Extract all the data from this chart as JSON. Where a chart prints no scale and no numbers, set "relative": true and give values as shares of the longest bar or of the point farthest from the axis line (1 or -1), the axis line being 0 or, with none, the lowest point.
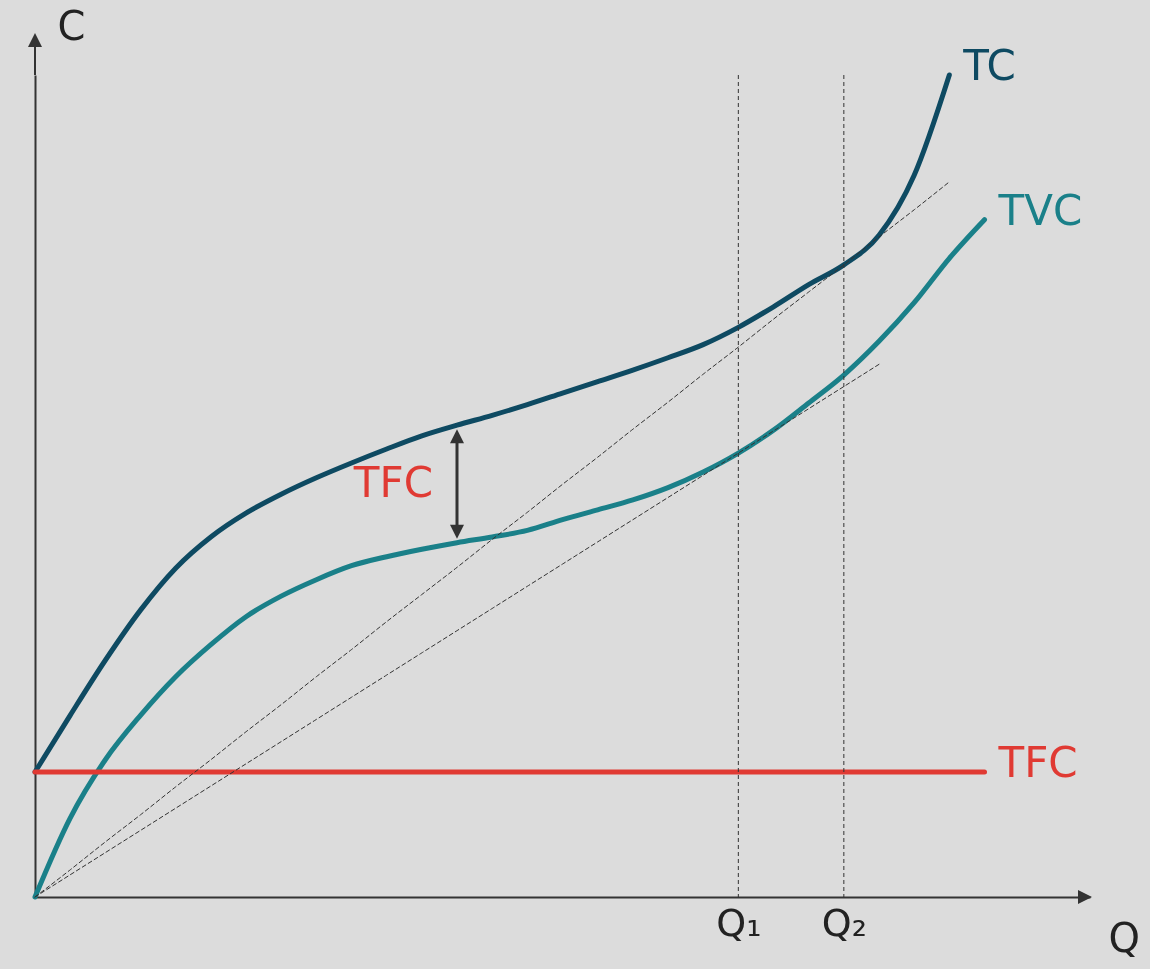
{
  "chart_data": {
    "type": "line",
    "relative": true,
    "xlabel": "Q",
    "ylabel": "C",
    "categories": [
      null,
      null,
      null,
      null,
      null,
      null,
      null,
      null,
      null,
      null,
      null,
      null,
      null,
      null,
      null,
      null,
      null,
      null,
      null,
      null,
      "Q₁",
      null,
      null,
      "Q₂",
      null,
      null,
      null,
      null,
      null,
      null,
      null
    ],
    "series": [
      {
        "name": "TC",
        "color": "#0e4a62",
        "values": [
          0.152,
          0.221,
          0.288,
          0.349,
          0.4,
          0.438,
          0.467,
          0.49,
          0.51,
          0.528,
          0.545,
          0.561,
          0.574,
          0.586,
          0.599,
          0.613,
          0.627,
          0.641,
          0.656,
          0.672,
          0.693,
          0.718,
          0.745,
          0.769,
          0.805,
          0.878,
          1,
          null,
          null,
          null,
          null
        ]
      },
      {
        "name": "TVC",
        "color": "#1a8089",
        "values": [
          0,
          0.096,
          0.167,
          0.221,
          0.268,
          0.307,
          0.341,
          0.366,
          0.386,
          0.403,
          0.414,
          0.423,
          0.431,
          0.438,
          0.446,
          0.459,
          0.471,
          0.483,
          0.498,
          0.517,
          0.54,
          0.568,
          0.601,
          0.635,
          0.676,
          0.723,
          0.777,
          0.824,
          null,
          null,
          null
        ]
      },
      {
        "name": "TFC",
        "color": "#e03a33",
        "values": [
          0.152,
          0.152,
          0.152,
          0.152,
          0.152,
          0.152,
          0.152,
          0.152,
          0.152,
          0.152,
          0.152,
          0.152,
          0.152,
          0.152,
          0.152,
          0.152,
          0.152,
          0.152,
          0.152,
          0.152,
          0.152,
          0.152,
          0.152,
          0.152,
          0.152,
          0.152,
          0.152,
          0.152,
          null,
          null,
          null
        ]
      },
      {
        "color": "#333333",
        "line_style": "dashed",
        "values": [
          0,
          0.033,
          0.067,
          0.1,
          0.134,
          0.167,
          0.201,
          0.234,
          0.268,
          0.301,
          0.335,
          0.368,
          0.401,
          0.435,
          0.468,
          0.502,
          0.535,
          0.569,
          0.602,
          0.636,
          0.669,
          0.703,
          0.736,
          0.769,
          0.803,
          0.836,
          0.87,
          null,
          null,
          null,
          null
        ]
      },
      {
        "color": "#333333",
        "line_style": "dashed",
        "values": [
          0,
          0.027,
          0.054,
          0.081,
          0.108,
          0.135,
          0.162,
          0.189,
          0.216,
          0.243,
          0.27,
          0.297,
          0.324,
          0.351,
          0.378,
          0.405,
          0.432,
          0.459,
          0.486,
          0.513,
          0.54,
          0.567,
          0.594,
          0.621,
          0.648,
          null,
          null,
          null,
          null,
          null,
          null
        ]
      }
    ],
    "ref_lines": [
      {
        "axis": "x",
        "value": "Q₁",
        "color": "#333333",
        "line_style": "dashed"
      },
      {
        "axis": "x",
        "value": "Q₂",
        "color": "#333333",
        "line_style": "dashed"
      }
    ],
    "annotations": [
      "TFC"
    ]
  }
}
